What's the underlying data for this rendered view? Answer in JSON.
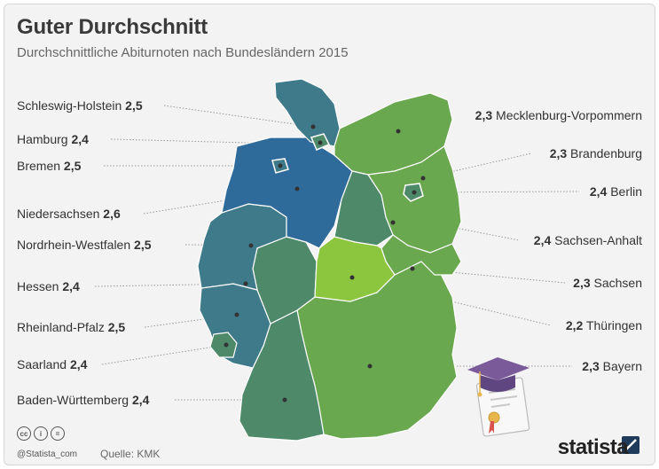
{
  "title": "Guter Durchschnitt",
  "subtitle": "Durchschnittliche Abiturnoten nach Bundesländern 2015",
  "states_left": [
    {
      "name": "Schleswig-Holstein",
      "value": "2,5"
    },
    {
      "name": "Hamburg",
      "value": "2,4"
    },
    {
      "name": "Bremen",
      "value": "2,5"
    },
    {
      "name": "Niedersachsen",
      "value": "2,6"
    },
    {
      "name": "Nordrhein-Westfalen",
      "value": "2,5"
    },
    {
      "name": "Hessen",
      "value": "2,4"
    },
    {
      "name": "Rheinland-Pfalz",
      "value": "2,5"
    },
    {
      "name": "Saarland",
      "value": "2,4"
    },
    {
      "name": "Baden-Württemberg",
      "value": "2,4"
    }
  ],
  "states_right": [
    {
      "name": "Mecklenburg-Vorpommern",
      "value": "2,3"
    },
    {
      "name": "Brandenburg",
      "value": "2,3"
    },
    {
      "name": "Berlin",
      "value": "2,4"
    },
    {
      "name": "Sachsen-Anhalt",
      "value": "2,4"
    },
    {
      "name": "Sachsen",
      "value": "2,3"
    },
    {
      "name": "Thüringen",
      "value": "2,2"
    },
    {
      "name": "Bayern",
      "value": "2,3"
    }
  ],
  "colors": {
    "grade_2_2": "#8cc63f",
    "grade_2_3": "#6aa84f",
    "grade_2_4": "#4e8a6a",
    "grade_2_5": "#3f7a8a",
    "grade_2_6": "#2e6a9a",
    "dot": "#333333",
    "leader": "#9a9a9a"
  },
  "icons": [
    "graduation-cap-icon",
    "diploma-icon"
  ],
  "footer": {
    "license_icons": [
      "cc",
      "i",
      "="
    ],
    "handle": "@Statista_com",
    "source": "Quelle: KMK",
    "brand": "statista"
  }
}
